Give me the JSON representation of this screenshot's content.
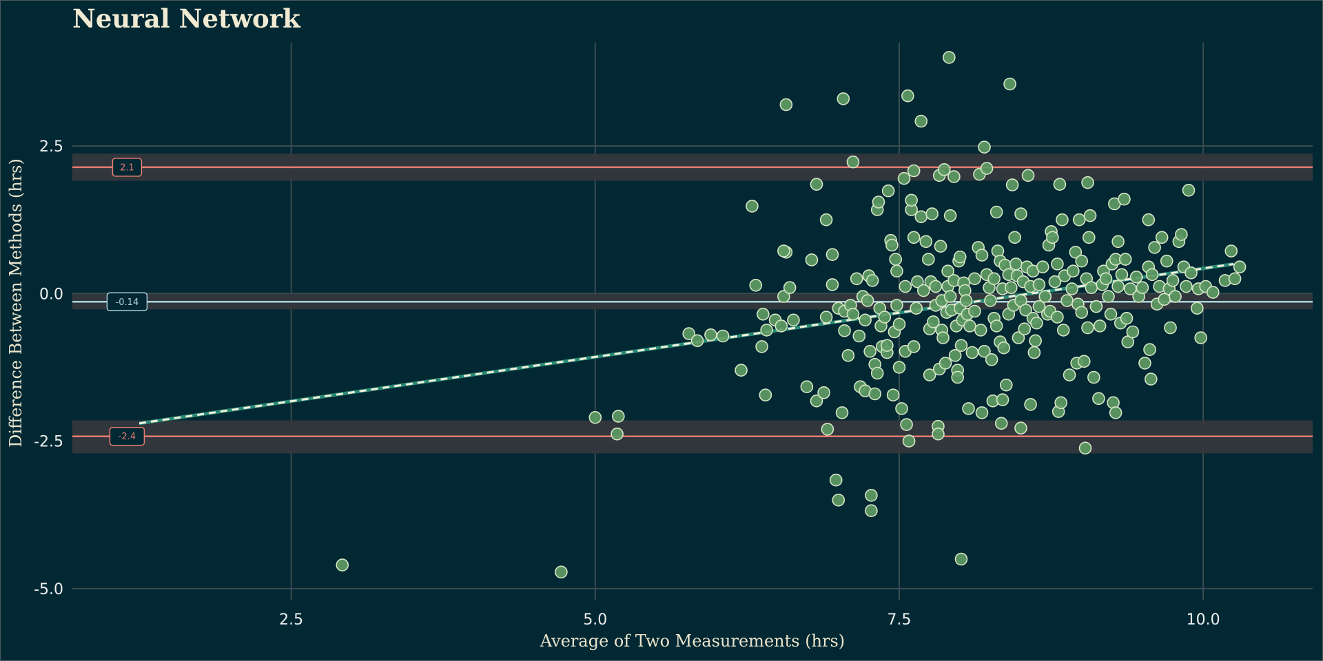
{
  "chart_data": {
    "type": "scatter",
    "title": "Neural Network",
    "xlabel": "Average of Two Measurements (hrs)",
    "ylabel": "Difference Between Methods (hrs)",
    "xlim": [
      0.7,
      10.9
    ],
    "ylim": [
      -5.2,
      4.25
    ],
    "x_ticks": [
      2.5,
      5.0,
      7.5,
      10.0
    ],
    "x_tick_labels": [
      "2.5",
      "5.0",
      "7.5",
      "10.0"
    ],
    "y_ticks": [
      -5.0,
      -2.5,
      0.0,
      2.5
    ],
    "y_tick_labels": [
      "-5.0",
      "-2.5",
      "0.0",
      "2.5"
    ],
    "grid": true,
    "bias": {
      "value": -0.14,
      "label": "-0.14",
      "ci": [
        -0.27,
        -0.01
      ],
      "color": "#a9d4dc"
    },
    "upper_loa": {
      "value": 2.14,
      "label": "2.1",
      "ci": [
        1.91,
        2.37
      ],
      "color": "#e87c70"
    },
    "lower_loa": {
      "value": -2.42,
      "label": "-2.4",
      "ci": [
        -2.71,
        -2.15
      ],
      "color": "#e87c70"
    },
    "trend_line": {
      "x": [
        1.25,
        10.25
      ],
      "y": [
        -2.2,
        0.5
      ],
      "style": "dashed"
    },
    "colors": {
      "point_fill": "#5d9a63",
      "point_stroke": "#d6e6c6",
      "background": "#022833",
      "grid": "#3b4b4f"
    },
    "points": [
      [
        2.92,
        -4.6
      ],
      [
        4.72,
        -4.72
      ],
      [
        5.0,
        -2.1
      ],
      [
        5.19,
        -2.08
      ],
      [
        5.18,
        -2.38
      ],
      [
        5.77,
        -0.68
      ],
      [
        5.84,
        -0.8
      ],
      [
        5.95,
        -0.7
      ],
      [
        6.05,
        -0.72
      ],
      [
        6.2,
        -1.3
      ],
      [
        6.29,
        1.48
      ],
      [
        6.32,
        0.14
      ],
      [
        6.37,
        -0.9
      ],
      [
        6.38,
        -0.35
      ],
      [
        6.4,
        -1.72
      ],
      [
        6.41,
        -0.62
      ],
      [
        6.48,
        -0.45
      ],
      [
        6.53,
        -0.55
      ],
      [
        6.55,
        -0.05
      ],
      [
        6.57,
        0.7
      ],
      [
        6.6,
        0.1
      ],
      [
        6.63,
        -0.45
      ],
      [
        6.57,
        3.2
      ],
      [
        6.55,
        0.72
      ],
      [
        6.74,
        -1.58
      ],
      [
        6.78,
        0.57
      ],
      [
        6.82,
        -1.82
      ],
      [
        6.82,
        1.85
      ],
      [
        6.88,
        -1.68
      ],
      [
        6.9,
        1.25
      ],
      [
        6.9,
        -0.4
      ],
      [
        6.91,
        -2.3
      ],
      [
        6.95,
        0.15
      ],
      [
        6.95,
        0.66
      ],
      [
        6.98,
        -3.16
      ],
      [
        7.0,
        -0.25
      ],
      [
        7.0,
        -3.5
      ],
      [
        7.03,
        -2.02
      ],
      [
        7.04,
        3.3
      ],
      [
        7.05,
        -0.63
      ],
      [
        7.05,
        -0.3
      ],
      [
        7.08,
        -1.05
      ],
      [
        7.1,
        -0.2
      ],
      [
        7.12,
        -0.35
      ],
      [
        7.12,
        2.23
      ],
      [
        7.15,
        0.25
      ],
      [
        7.17,
        -0.72
      ],
      [
        7.18,
        -1.58
      ],
      [
        7.2,
        -0.05
      ],
      [
        7.22,
        -1.65
      ],
      [
        7.22,
        -0.45
      ],
      [
        7.24,
        -0.12
      ],
      [
        7.25,
        0.3
      ],
      [
        7.26,
        -0.98
      ],
      [
        7.27,
        -3.42
      ],
      [
        7.27,
        -3.68
      ],
      [
        7.28,
        0.22
      ],
      [
        7.3,
        -1.7
      ],
      [
        7.3,
        -1.2
      ],
      [
        7.32,
        -1.35
      ],
      [
        7.32,
        1.42
      ],
      [
        7.33,
        1.55
      ],
      [
        7.34,
        -0.25
      ],
      [
        7.35,
        -0.55
      ],
      [
        7.36,
        -0.9
      ],
      [
        7.38,
        -0.4
      ],
      [
        7.4,
        -1.0
      ],
      [
        7.4,
        -0.88
      ],
      [
        7.41,
        1.74
      ],
      [
        7.43,
        0.9
      ],
      [
        7.44,
        0.82
      ],
      [
        7.45,
        -1.72
      ],
      [
        7.46,
        -0.65
      ],
      [
        7.47,
        0.58
      ],
      [
        7.48,
        0.38
      ],
      [
        7.48,
        -0.2
      ],
      [
        7.5,
        -1.25
      ],
      [
        7.5,
        -0.52
      ],
      [
        7.52,
        -1.95
      ],
      [
        7.54,
        1.95
      ],
      [
        7.55,
        -0.98
      ],
      [
        7.55,
        0.12
      ],
      [
        7.56,
        -2.22
      ],
      [
        7.57,
        3.35
      ],
      [
        7.58,
        -2.5
      ],
      [
        7.6,
        1.42
      ],
      [
        7.6,
        1.58
      ],
      [
        7.62,
        0.95
      ],
      [
        7.62,
        -0.9
      ],
      [
        7.62,
        2.08
      ],
      [
        7.64,
        -0.25
      ],
      [
        7.65,
        0.2
      ],
      [
        7.68,
        1.3
      ],
      [
        7.68,
        2.92
      ],
      [
        7.7,
        0.05
      ],
      [
        7.72,
        0.88
      ],
      [
        7.74,
        0.58
      ],
      [
        7.75,
        -1.38
      ],
      [
        7.75,
        -0.6
      ],
      [
        7.76,
        0.2
      ],
      [
        7.77,
        1.35
      ],
      [
        7.78,
        -0.48
      ],
      [
        7.8,
        0.12
      ],
      [
        7.8,
        -0.2
      ],
      [
        7.82,
        -2.25
      ],
      [
        7.82,
        -2.38
      ],
      [
        7.83,
        -1.28
      ],
      [
        7.83,
        2.0
      ],
      [
        7.84,
        0.8
      ],
      [
        7.85,
        -0.12
      ],
      [
        7.85,
        -0.62
      ],
      [
        7.86,
        -0.75
      ],
      [
        7.87,
        2.1
      ],
      [
        7.88,
        -1.18
      ],
      [
        7.89,
        -0.32
      ],
      [
        7.9,
        0.12
      ],
      [
        7.9,
        0.38
      ],
      [
        7.91,
        4.0
      ],
      [
        7.92,
        1.32
      ],
      [
        7.92,
        -0.05
      ],
      [
        7.93,
        -0.28
      ],
      [
        7.95,
        0.22
      ],
      [
        7.95,
        1.98
      ],
      [
        7.96,
        -1.05
      ],
      [
        7.97,
        -0.55
      ],
      [
        7.98,
        -1.3
      ],
      [
        7.98,
        -1.42
      ],
      [
        7.99,
        0.55
      ],
      [
        8.0,
        0.62
      ],
      [
        8.0,
        -0.25
      ],
      [
        8.01,
        -0.88
      ],
      [
        8.01,
        -4.5
      ],
      [
        8.02,
        -0.45
      ],
      [
        8.03,
        0.18
      ],
      [
        8.04,
        0.05
      ],
      [
        8.05,
        -0.12
      ],
      [
        8.06,
        -0.35
      ],
      [
        8.07,
        -1.95
      ],
      [
        8.08,
        -0.55
      ],
      [
        8.1,
        -1.0
      ],
      [
        8.12,
        -0.3
      ],
      [
        8.12,
        0.25
      ],
      [
        8.15,
        0.78
      ],
      [
        8.16,
        2.02
      ],
      [
        8.17,
        -0.62
      ],
      [
        8.18,
        0.65
      ],
      [
        8.18,
        -2.02
      ],
      [
        8.2,
        2.48
      ],
      [
        8.2,
        -0.98
      ],
      [
        8.22,
        2.12
      ],
      [
        8.22,
        0.32
      ],
      [
        8.24,
        0.1
      ],
      [
        8.25,
        -0.12
      ],
      [
        8.26,
        -1.12
      ],
      [
        8.27,
        -1.82
      ],
      [
        8.28,
        -0.42
      ],
      [
        8.28,
        0.25
      ],
      [
        8.3,
        1.38
      ],
      [
        8.3,
        -0.55
      ],
      [
        8.31,
        0.72
      ],
      [
        8.33,
        0.55
      ],
      [
        8.33,
        -0.82
      ],
      [
        8.34,
        -2.2
      ],
      [
        8.35,
        0.08
      ],
      [
        8.35,
        -1.8
      ],
      [
        8.36,
        -0.92
      ],
      [
        8.37,
        0.48
      ],
      [
        8.38,
        -1.55
      ],
      [
        8.4,
        -0.35
      ],
      [
        8.4,
        0.32
      ],
      [
        8.41,
        3.55
      ],
      [
        8.42,
        0.1
      ],
      [
        8.43,
        1.84
      ],
      [
        8.44,
        -0.2
      ],
      [
        8.45,
        0.95
      ],
      [
        8.46,
        0.5
      ],
      [
        8.47,
        0.3
      ],
      [
        8.48,
        -0.75
      ],
      [
        8.5,
        -0.12
      ],
      [
        8.5,
        1.35
      ],
      [
        8.5,
        -2.28
      ],
      [
        8.52,
        0.2
      ],
      [
        8.53,
        -0.6
      ],
      [
        8.54,
        -0.28
      ],
      [
        8.55,
        0.45
      ],
      [
        8.56,
        2.0
      ],
      [
        8.58,
        -1.88
      ],
      [
        8.58,
        0.12
      ],
      [
        8.6,
        -0.42
      ],
      [
        8.6,
        0.38
      ],
      [
        8.61,
        -1.0
      ],
      [
        8.62,
        -0.8
      ],
      [
        8.63,
        -0.5
      ],
      [
        8.65,
        0.15
      ],
      [
        8.65,
        -0.22
      ],
      [
        8.68,
        0.45
      ],
      [
        8.7,
        -0.05
      ],
      [
        8.72,
        -0.35
      ],
      [
        8.73,
        0.82
      ],
      [
        8.74,
        -0.3
      ],
      [
        8.75,
        1.05
      ],
      [
        8.76,
        0.95
      ],
      [
        8.78,
        0.2
      ],
      [
        8.8,
        -0.4
      ],
      [
        8.8,
        0.5
      ],
      [
        8.81,
        -2.0
      ],
      [
        8.82,
        1.85
      ],
      [
        8.83,
        -1.85
      ],
      [
        8.84,
        1.25
      ],
      [
        8.85,
        -0.62
      ],
      [
        8.86,
        0.3
      ],
      [
        8.88,
        -0.12
      ],
      [
        8.9,
        -1.38
      ],
      [
        8.92,
        0.08
      ],
      [
        8.93,
        0.38
      ],
      [
        8.95,
        0.7
      ],
      [
        8.96,
        -1.18
      ],
      [
        8.97,
        -0.18
      ],
      [
        8.98,
        1.25
      ],
      [
        9.0,
        -0.32
      ],
      [
        9.0,
        0.55
      ],
      [
        9.02,
        -1.15
      ],
      [
        9.03,
        -2.62
      ],
      [
        9.04,
        0.25
      ],
      [
        9.05,
        -0.58
      ],
      [
        9.05,
        1.88
      ],
      [
        9.06,
        0.95
      ],
      [
        9.07,
        1.32
      ],
      [
        9.08,
        0.1
      ],
      [
        9.1,
        -1.42
      ],
      [
        9.12,
        -0.22
      ],
      [
        9.14,
        -1.78
      ],
      [
        9.15,
        -0.55
      ],
      [
        9.17,
        0.15
      ],
      [
        9.18,
        0.38
      ],
      [
        9.2,
        0.25
      ],
      [
        9.22,
        -0.05
      ],
      [
        9.24,
        -0.35
      ],
      [
        9.25,
        0.5
      ],
      [
        9.26,
        -1.85
      ],
      [
        9.27,
        1.52
      ],
      [
        9.28,
        -2.02
      ],
      [
        9.28,
        0.58
      ],
      [
        9.3,
        0.88
      ],
      [
        9.3,
        0.12
      ],
      [
        9.32,
        -0.5
      ],
      [
        9.33,
        0.32
      ],
      [
        9.35,
        1.6
      ],
      [
        9.36,
        0.58
      ],
      [
        9.37,
        -0.42
      ],
      [
        9.38,
        -0.82
      ],
      [
        9.4,
        0.08
      ],
      [
        9.42,
        -0.65
      ],
      [
        9.45,
        0.28
      ],
      [
        9.47,
        -0.05
      ],
      [
        9.5,
        0.1
      ],
      [
        9.52,
        -1.18
      ],
      [
        9.55,
        1.25
      ],
      [
        9.55,
        0.45
      ],
      [
        9.56,
        -0.95
      ],
      [
        9.57,
        -1.45
      ],
      [
        9.58,
        0.32
      ],
      [
        9.6,
        0.78
      ],
      [
        9.62,
        -0.18
      ],
      [
        9.64,
        0.12
      ],
      [
        9.66,
        0.95
      ],
      [
        9.68,
        -0.1
      ],
      [
        9.7,
        0.55
      ],
      [
        9.72,
        0.08
      ],
      [
        9.73,
        -0.58
      ],
      [
        9.75,
        0.22
      ],
      [
        9.77,
        -0.05
      ],
      [
        9.8,
        0.88
      ],
      [
        9.82,
        1.0
      ],
      [
        9.84,
        0.45
      ],
      [
        9.86,
        0.12
      ],
      [
        9.88,
        1.75
      ],
      [
        9.9,
        0.35
      ],
      [
        9.95,
        -0.25
      ],
      [
        9.96,
        0.08
      ],
      [
        9.98,
        -0.75
      ],
      [
        10.02,
        0.12
      ],
      [
        10.08,
        0.02
      ],
      [
        10.18,
        0.22
      ],
      [
        10.23,
        0.72
      ],
      [
        10.26,
        0.25
      ],
      [
        10.3,
        0.45
      ]
    ]
  }
}
